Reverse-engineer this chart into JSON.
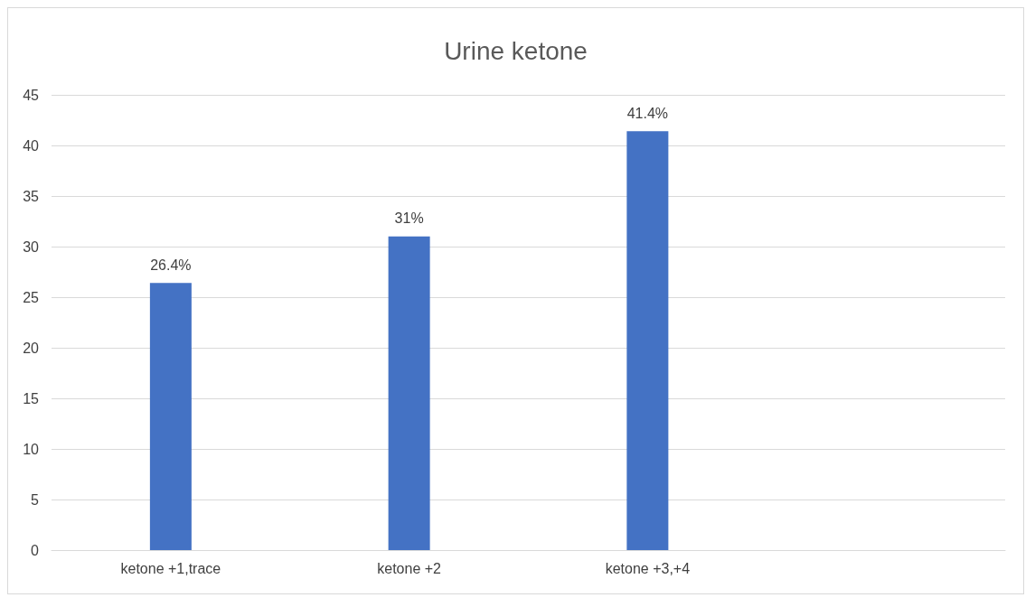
{
  "chart_data": {
    "type": "bar",
    "title": "Urine ketone",
    "categories": [
      "ketone +1,trace",
      "ketone +2",
      "ketone +3,+4",
      null
    ],
    "values": [
      26.4,
      31,
      41.4,
      null
    ],
    "value_labels": [
      "26.4%",
      "31%",
      "41.4%",
      null
    ],
    "color": "#4472c4",
    "ylim": [
      0,
      45
    ],
    "yticks": [
      0,
      5,
      10,
      15,
      20,
      25,
      30,
      35,
      40,
      45
    ],
    "grid": "y"
  }
}
